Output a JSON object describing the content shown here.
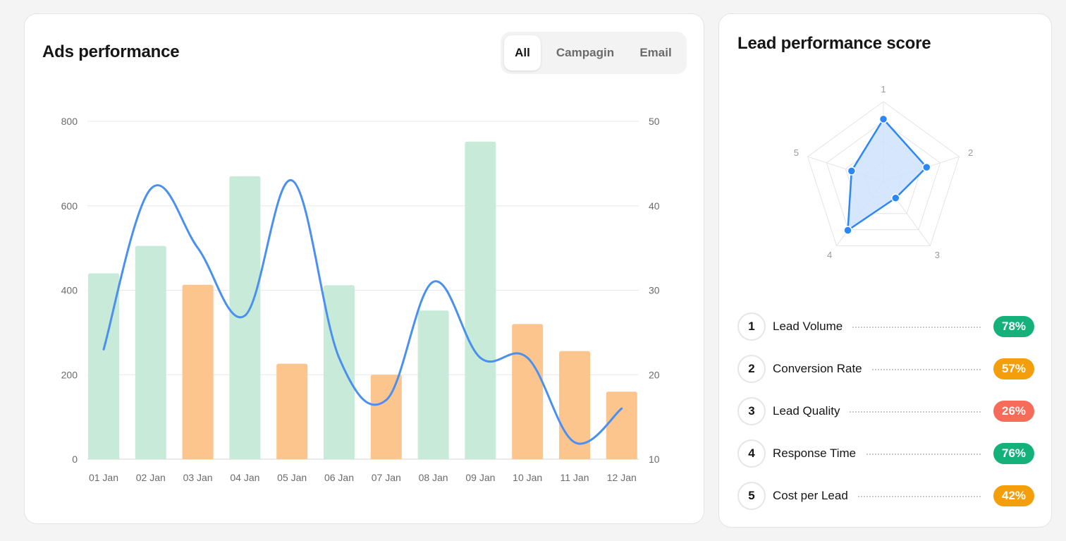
{
  "ads": {
    "title": "Ads performance",
    "tabs": [
      {
        "label": "All",
        "active": true
      },
      {
        "label": "Campagin",
        "active": false
      },
      {
        "label": "Email",
        "active": false
      }
    ]
  },
  "chart_data": [
    {
      "type": "bar",
      "title": "Ads performance",
      "categories": [
        "01 Jan",
        "02 Jan",
        "03 Jan",
        "04 Jan",
        "05 Jan",
        "06 Jan",
        "07 Jan",
        "08 Jan",
        "09 Jan",
        "10 Jan",
        "11 Jan",
        "12 Jan"
      ],
      "series": [
        {
          "name": "bars",
          "axis": "left",
          "values": [
            440,
            505,
            413,
            670,
            226,
            412,
            200,
            352,
            752,
            320,
            256,
            160
          ],
          "colors": [
            "#c8ebd9",
            "#c8ebd9",
            "#fdc58e",
            "#c8ebd9",
            "#fdc58e",
            "#c8ebd9",
            "#fdc58e",
            "#c8ebd9",
            "#c8ebd9",
            "#fdc58e",
            "#fdc58e",
            "#fdc58e"
          ]
        },
        {
          "name": "line",
          "axis": "right",
          "type": "line",
          "color": "#4a90f0",
          "values": [
            23,
            42,
            35,
            27,
            43,
            22,
            17,
            31,
            22,
            22,
            12,
            16
          ]
        }
      ],
      "ylim": [
        0,
        800
      ],
      "yticks": [
        0,
        200,
        400,
        600,
        800
      ],
      "y2lim": [
        10,
        50
      ],
      "y2ticks": [
        10,
        20,
        30,
        40,
        50
      ],
      "grid": true
    },
    {
      "type": "radar",
      "title": "Lead performance score",
      "axes": [
        "1",
        "2",
        "3",
        "4",
        "5"
      ],
      "values": [
        78,
        57,
        26,
        76,
        42
      ],
      "max": 100,
      "color": "#2b87f3",
      "fill": "#cfe2fc"
    }
  ],
  "lead": {
    "title": "Lead performance score",
    "items": [
      {
        "num": "1",
        "label": "Lead Volume",
        "pct": "78%",
        "color": "#14b17b"
      },
      {
        "num": "2",
        "label": "Conversion Rate",
        "pct": "57%",
        "color": "#f59e0b"
      },
      {
        "num": "3",
        "label": "Lead Quality",
        "pct": "26%",
        "color": "#f76b5a"
      },
      {
        "num": "4",
        "label": "Response Time",
        "pct": "76%",
        "color": "#14b17b"
      },
      {
        "num": "5",
        "label": "Cost per Lead",
        "pct": "42%",
        "color": "#f59e0b"
      }
    ]
  }
}
